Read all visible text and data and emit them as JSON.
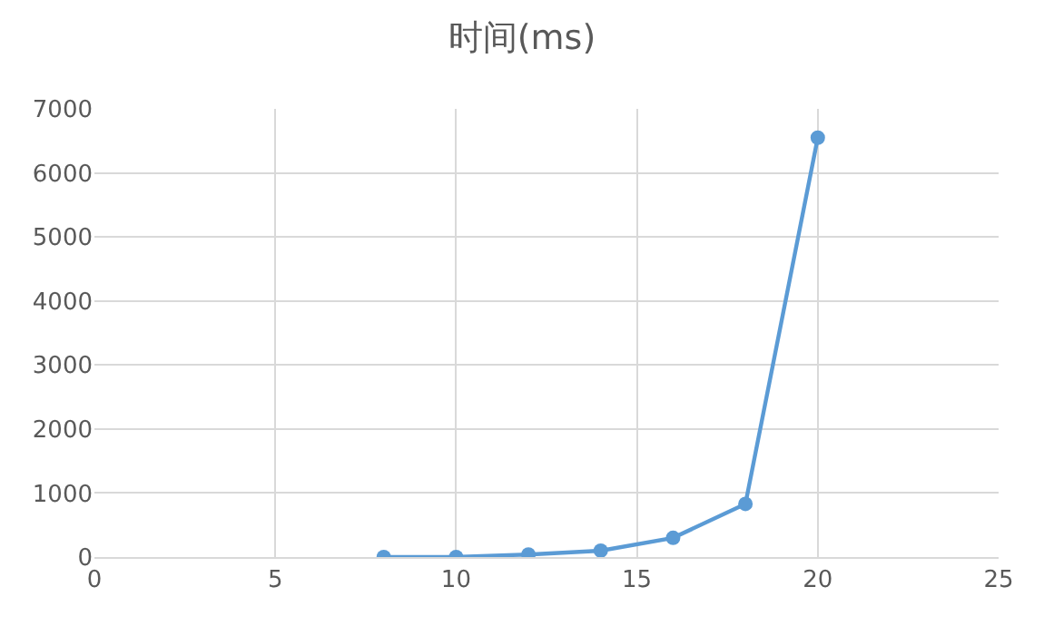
{
  "chart_data": {
    "type": "line",
    "title": "时间(ms)",
    "x": [
      8,
      10,
      12,
      14,
      16,
      18,
      20
    ],
    "series": [
      {
        "color": "#5b9bd5",
        "values": [
          0,
          0,
          40,
          100,
          300,
          830,
          6550
        ]
      }
    ],
    "xlim": [
      0,
      25
    ],
    "xticks": [
      0,
      5,
      10,
      15,
      20,
      25
    ],
    "ylim": [
      0,
      7000
    ],
    "yticks": [
      0,
      1000,
      2000,
      3000,
      4000,
      5000,
      6000,
      7000
    ],
    "grid": true,
    "marker": "circle",
    "line_style": "solid",
    "legend": false
  }
}
